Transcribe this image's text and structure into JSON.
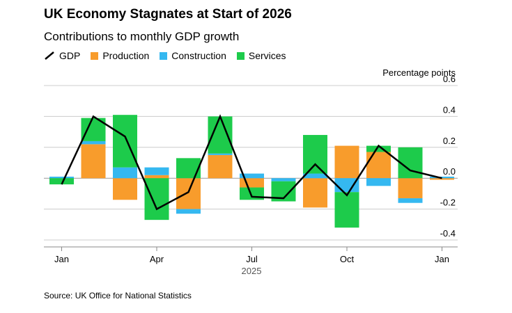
{
  "title": "UK Economy Stagnates at Start of 2026",
  "subtitle": "Contributions to monthly GDP growth",
  "source": "Source: UK Office for National Statistics",
  "colors": {
    "production": "#F89C2C",
    "construction": "#35B8F0",
    "services": "#1DCB4B",
    "gdp": "#000000",
    "grid": "#cccccc",
    "zero": "#999999"
  },
  "legend": [
    {
      "key": "gdp",
      "label": "GDP",
      "kind": "line"
    },
    {
      "key": "production",
      "label": "Production",
      "kind": "bar"
    },
    {
      "key": "construction",
      "label": "Construction",
      "kind": "bar"
    },
    {
      "key": "services",
      "label": "Services",
      "kind": "bar"
    }
  ],
  "chart_data": {
    "type": "bar",
    "stacked": true,
    "categories": [
      "Jan 2025",
      "Feb 2025",
      "Mar 2025",
      "Apr 2025",
      "May 2025",
      "Jun 2025",
      "Jul 2025",
      "Aug 2025",
      "Sep 2025",
      "Oct 2025",
      "Nov 2025",
      "Dec 2025",
      "Jan 2026"
    ],
    "series": [
      {
        "key": "production",
        "name": "Production",
        "values": [
          0.0,
          0.22,
          -0.14,
          0.02,
          -0.2,
          0.15,
          -0.06,
          0.0,
          -0.19,
          0.21,
          0.17,
          -0.13,
          -0.01
        ]
      },
      {
        "key": "construction",
        "name": "Construction",
        "values": [
          0.01,
          0.02,
          0.07,
          0.05,
          -0.03,
          0.01,
          0.03,
          -0.02,
          0.03,
          -0.09,
          -0.05,
          -0.03,
          0.01
        ]
      },
      {
        "key": "services",
        "name": "Services",
        "values": [
          -0.04,
          0.15,
          0.34,
          -0.27,
          0.13,
          0.24,
          -0.08,
          -0.13,
          0.25,
          -0.23,
          0.04,
          0.2,
          0.0
        ]
      },
      {
        "key": "gdp",
        "name": "GDP",
        "type": "line",
        "values": [
          -0.04,
          0.4,
          0.27,
          -0.2,
          -0.09,
          0.4,
          -0.12,
          -0.13,
          0.09,
          -0.11,
          0.21,
          0.05,
          0.0
        ]
      }
    ],
    "ylabel": "Percentage points",
    "ylim": [
      -0.4,
      0.6
    ],
    "yticks": [
      0.6,
      0.4,
      0.2,
      0.0,
      -0.2,
      -0.4
    ],
    "ytick_labels": [
      "0.6",
      "0.4",
      "0.2",
      "0.0",
      "-0.2",
      "-0.4"
    ],
    "xticks": [
      {
        "index": 0,
        "label": "Jan"
      },
      {
        "index": 3,
        "label": "Apr"
      },
      {
        "index": 6,
        "label": "Jul"
      },
      {
        "index": 9,
        "label": "Oct"
      },
      {
        "index": 12,
        "label": "Jan"
      }
    ],
    "year_label": "2025",
    "grid": true,
    "legend_position": "top-left"
  }
}
